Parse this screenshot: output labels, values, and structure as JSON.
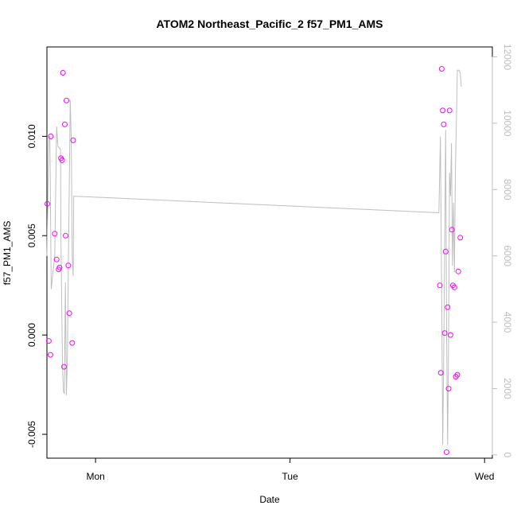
{
  "chart_data": {
    "type": "scatter",
    "title": "ATOM2 Northeast_Pacific_2 f57_PM1_AMS",
    "xlabel": "Date",
    "ylabel": "f57_PM1_AMS",
    "x_ticks": [
      "Mon",
      "Tue",
      "Wed"
    ],
    "y_ticks": [
      "-0.005",
      "0.000",
      "0.005",
      "0.010"
    ],
    "y2_ticks": [
      "0",
      "2000",
      "4000",
      "6000",
      "8000",
      "10000",
      "12000"
    ],
    "x_range_days": [
      -0.25,
      2.04
    ],
    "ylim": [
      -0.0062,
      0.0145
    ],
    "y2lim": [
      -100,
      12300
    ],
    "colors": {
      "points": "#ff00ff",
      "line": "#bebebe",
      "axis": "#000000",
      "right_axis": "#bebebe"
    },
    "series": [
      {
        "type": "scatter",
        "axis": "left",
        "points": [
          {
            "x": -0.248,
            "y": 0.0066
          },
          {
            "x": -0.24,
            "y": -0.0003
          },
          {
            "x": -0.232,
            "y": -0.001
          },
          {
            "x": -0.23,
            "y": 0.01
          },
          {
            "x": -0.21,
            "y": 0.0051
          },
          {
            "x": -0.2,
            "y": 0.0038
          },
          {
            "x": -0.19,
            "y": 0.0033
          },
          {
            "x": -0.185,
            "y": 0.0034
          },
          {
            "x": -0.178,
            "y": 0.0089
          },
          {
            "x": -0.172,
            "y": 0.0088
          },
          {
            "x": -0.168,
            "y": 0.0132
          },
          {
            "x": -0.162,
            "y": -0.0016
          },
          {
            "x": -0.158,
            "y": 0.0106
          },
          {
            "x": -0.154,
            "y": 0.005
          },
          {
            "x": -0.15,
            "y": 0.0118
          },
          {
            "x": -0.14,
            "y": 0.0035
          },
          {
            "x": -0.135,
            "y": 0.0011
          },
          {
            "x": -0.12,
            "y": -0.0004
          },
          {
            "x": -0.115,
            "y": 0.0098
          },
          {
            "x": 1.77,
            "y": 0.0025
          },
          {
            "x": 1.775,
            "y": -0.0019
          },
          {
            "x": 1.78,
            "y": 0.0134
          },
          {
            "x": 1.785,
            "y": 0.0113
          },
          {
            "x": 1.79,
            "y": 0.0106
          },
          {
            "x": 1.795,
            "y": 0.0001
          },
          {
            "x": 1.8,
            "y": 0.0042
          },
          {
            "x": 1.805,
            "y": -0.0059
          },
          {
            "x": 1.81,
            "y": 0.0014
          },
          {
            "x": 1.815,
            "y": -0.0027
          },
          {
            "x": 1.82,
            "y": 0.0113
          },
          {
            "x": 1.825,
            "y": 0.0
          },
          {
            "x": 1.832,
            "y": 0.0053
          },
          {
            "x": 1.837,
            "y": 0.0025
          },
          {
            "x": 1.845,
            "y": 0.0024
          },
          {
            "x": 1.852,
            "y": -0.0021
          },
          {
            "x": 1.86,
            "y": -0.002
          },
          {
            "x": 1.865,
            "y": 0.0032
          },
          {
            "x": 1.875,
            "y": 0.0049
          }
        ]
      },
      {
        "type": "line",
        "axis": "right",
        "points": [
          {
            "x": -0.25,
            "y": 6000
          },
          {
            "x": -0.24,
            "y": 9600
          },
          {
            "x": -0.235,
            "y": 9600
          },
          {
            "x": -0.228,
            "y": 5000
          },
          {
            "x": -0.21,
            "y": 6000
          },
          {
            "x": -0.2,
            "y": 9900
          },
          {
            "x": -0.193,
            "y": 9300
          },
          {
            "x": -0.185,
            "y": 9250
          },
          {
            "x": -0.18,
            "y": 9200
          },
          {
            "x": -0.178,
            "y": 6500
          },
          {
            "x": -0.17,
            "y": 2600
          },
          {
            "x": -0.165,
            "y": 1900
          },
          {
            "x": -0.16,
            "y": 1850
          },
          {
            "x": -0.155,
            "y": 5200
          },
          {
            "x": -0.15,
            "y": 1800
          },
          {
            "x": -0.145,
            "y": 2900
          },
          {
            "x": -0.14,
            "y": 5600
          },
          {
            "x": -0.13,
            "y": 10700
          },
          {
            "x": -0.125,
            "y": 9500
          },
          {
            "x": -0.12,
            "y": 6000
          },
          {
            "x": -0.115,
            "y": 5400
          },
          {
            "x": -0.112,
            "y": 7800
          },
          {
            "x": 1.765,
            "y": 7300
          },
          {
            "x": 1.773,
            "y": 9600
          },
          {
            "x": 1.78,
            "y": 4500
          },
          {
            "x": 1.785,
            "y": 300
          },
          {
            "x": 1.79,
            "y": 3000
          },
          {
            "x": 1.8,
            "y": 9800
          },
          {
            "x": 1.805,
            "y": 3600
          },
          {
            "x": 1.81,
            "y": 300
          },
          {
            "x": 1.815,
            "y": 3500
          },
          {
            "x": 1.82,
            "y": 8500
          },
          {
            "x": 1.825,
            "y": 7800
          },
          {
            "x": 1.83,
            "y": 9400
          },
          {
            "x": 1.835,
            "y": 5700
          },
          {
            "x": 1.84,
            "y": 7600
          },
          {
            "x": 1.845,
            "y": 5500
          },
          {
            "x": 1.85,
            "y": 8500
          },
          {
            "x": 1.86,
            "y": 11600
          },
          {
            "x": 1.868,
            "y": 11600
          },
          {
            "x": 1.875,
            "y": 11500
          },
          {
            "x": 1.88,
            "y": 11100
          }
        ]
      }
    ]
  }
}
